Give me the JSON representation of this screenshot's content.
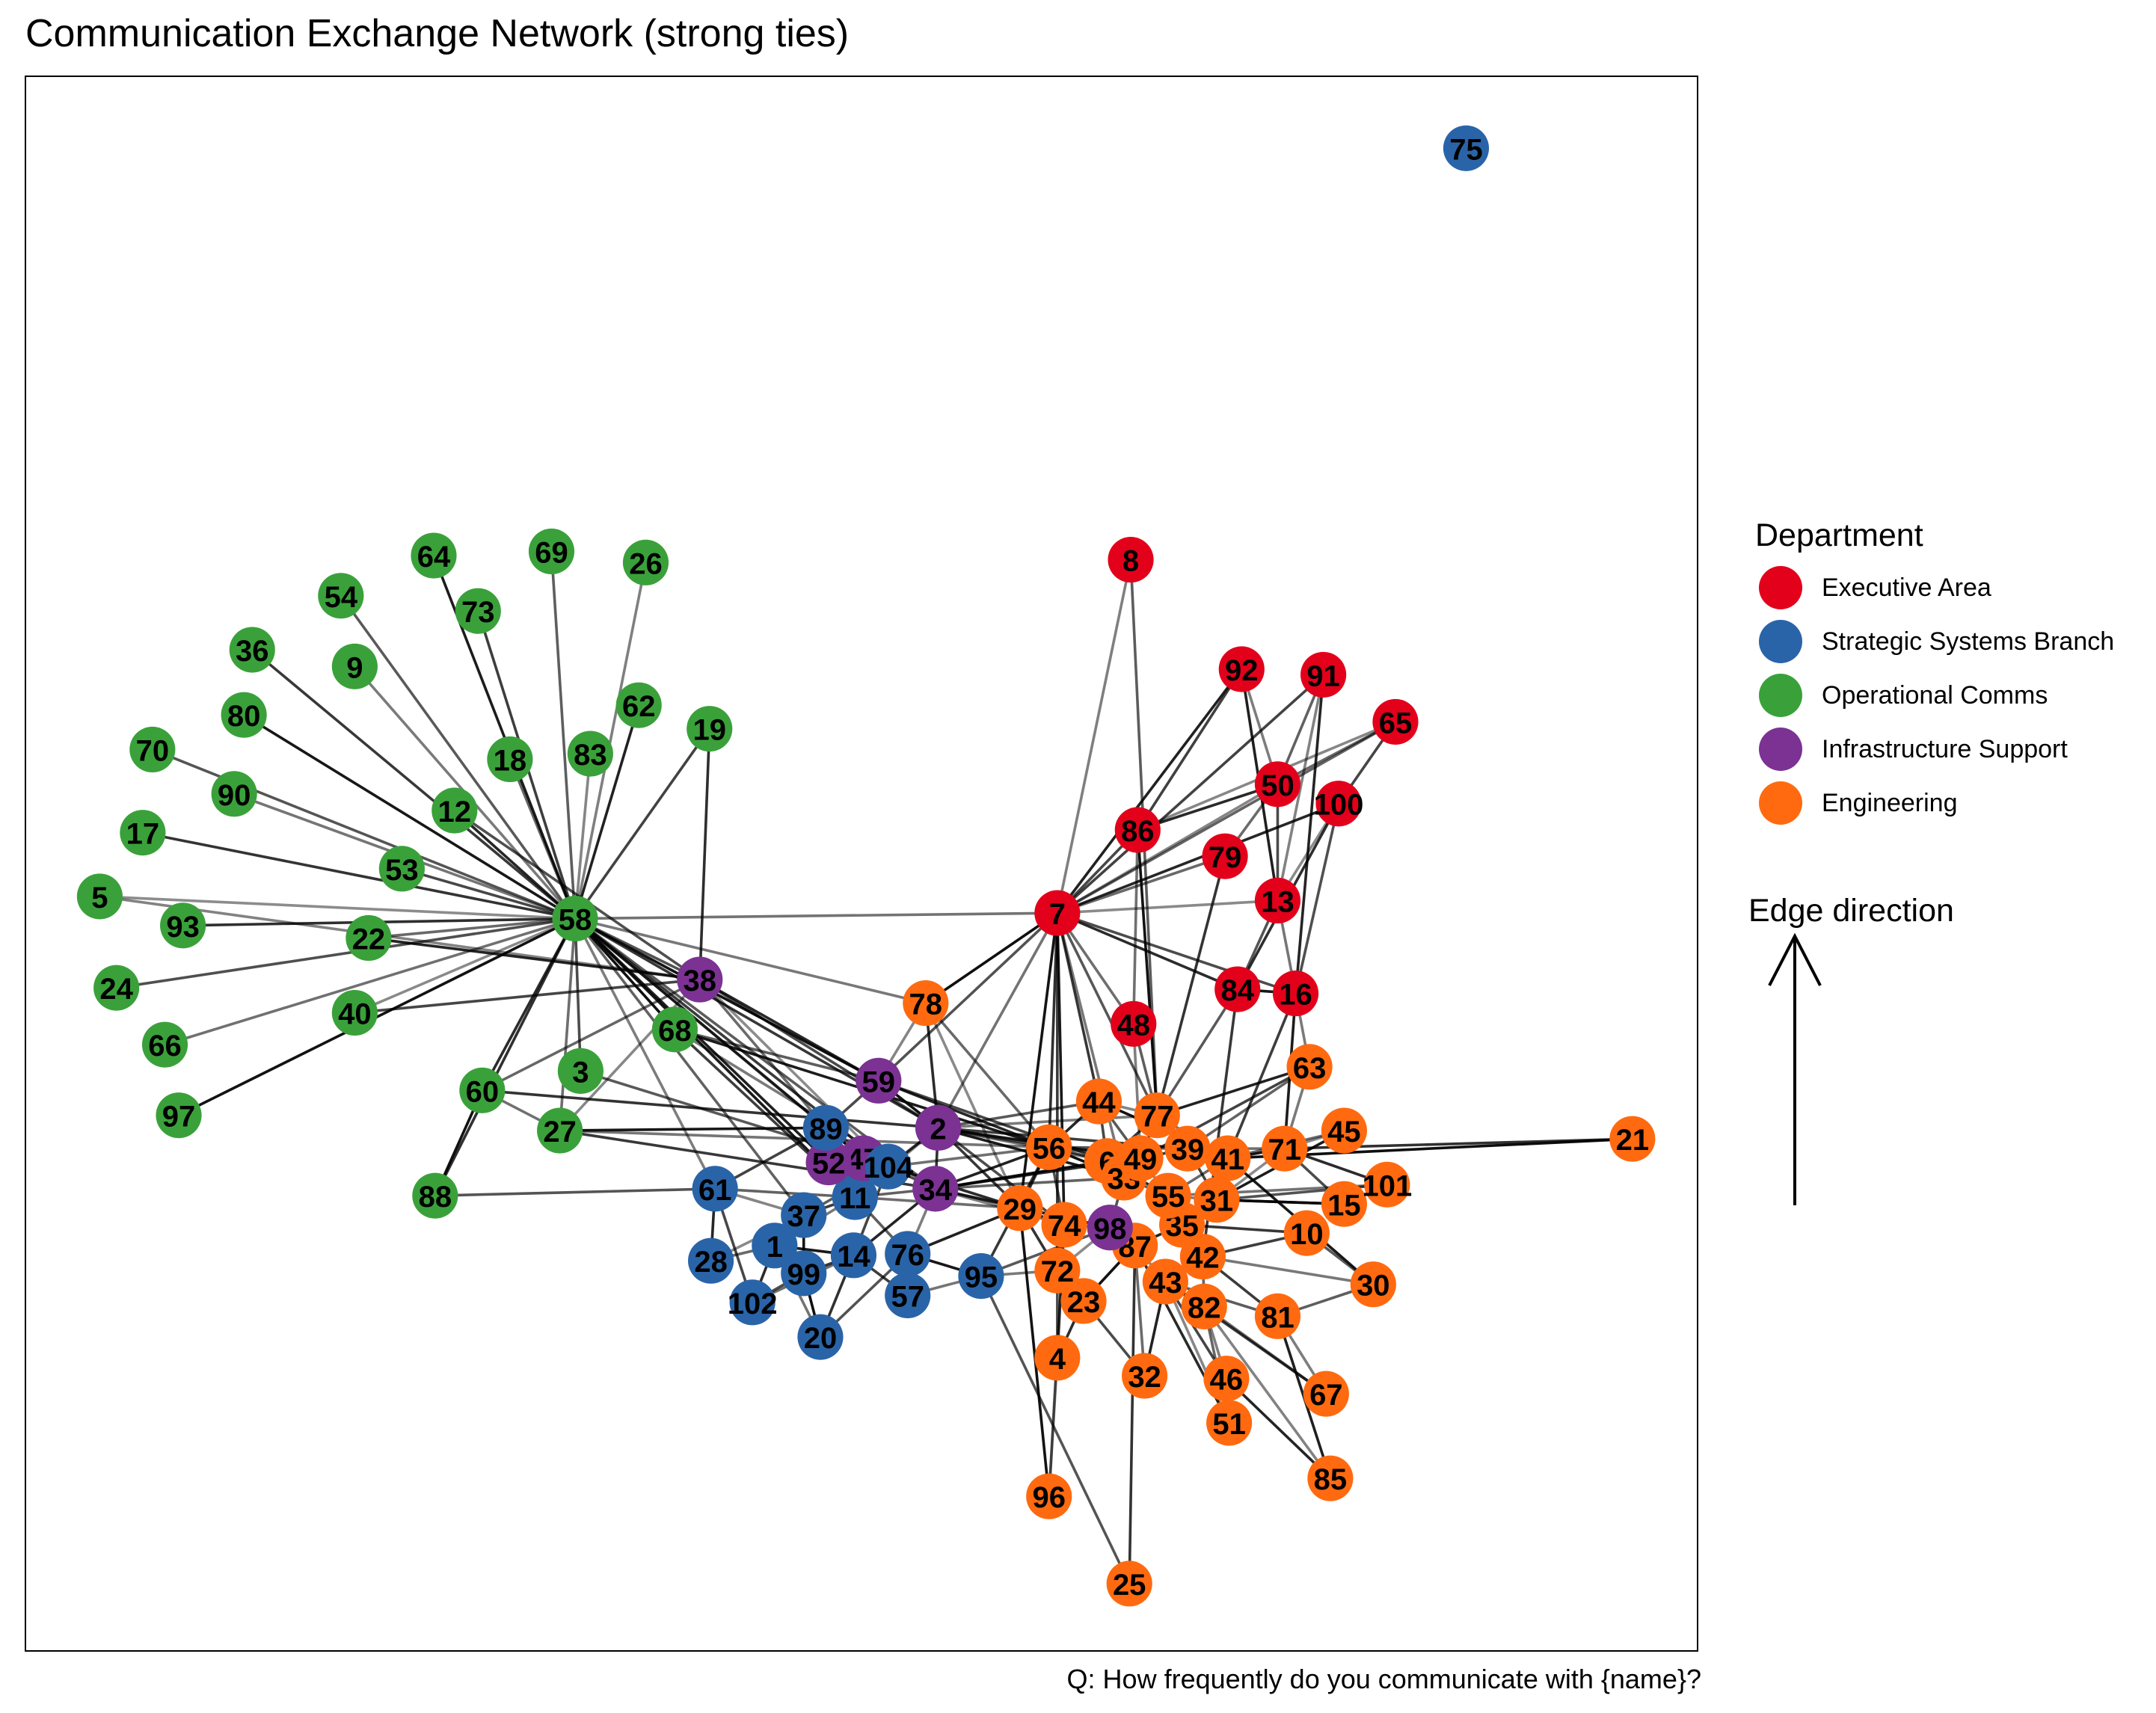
{
  "title": "Communication Exchange Network (strong ties)",
  "caption": "Q: How frequently do you communicate with {name}?",
  "legend": {
    "title": "Department",
    "entries": [
      {
        "label": "Executive Area",
        "color": "#E3001B"
      },
      {
        "label": "Strategic Systems Branch",
        "color": "#2A64A8"
      },
      {
        "label": "Operational Comms",
        "color": "#3AA13A"
      },
      {
        "label": "Infrastructure Support",
        "color": "#7B3293"
      },
      {
        "label": "Engineering",
        "color": "#FF6A10"
      }
    ]
  },
  "edge_direction": {
    "title": "Edge direction"
  },
  "nodes": [
    {
      "id": "1",
      "dept": 1
    },
    {
      "id": "2",
      "dept": 3
    },
    {
      "id": "3",
      "dept": 2
    },
    {
      "id": "4",
      "dept": 4
    },
    {
      "id": "5",
      "dept": 2
    },
    {
      "id": "6",
      "dept": 4
    },
    {
      "id": "7",
      "dept": 0
    },
    {
      "id": "8",
      "dept": 0
    },
    {
      "id": "9",
      "dept": 2
    },
    {
      "id": "10",
      "dept": 4
    },
    {
      "id": "11",
      "dept": 1
    },
    {
      "id": "12",
      "dept": 2
    },
    {
      "id": "13",
      "dept": 0
    },
    {
      "id": "14",
      "dept": 1
    },
    {
      "id": "15",
      "dept": 4
    },
    {
      "id": "16",
      "dept": 0
    },
    {
      "id": "17",
      "dept": 2
    },
    {
      "id": "18",
      "dept": 2
    },
    {
      "id": "19",
      "dept": 2
    },
    {
      "id": "20",
      "dept": 1
    },
    {
      "id": "21",
      "dept": 4
    },
    {
      "id": "22",
      "dept": 2
    },
    {
      "id": "23",
      "dept": 4
    },
    {
      "id": "24",
      "dept": 2
    },
    {
      "id": "25",
      "dept": 4
    },
    {
      "id": "26",
      "dept": 2
    },
    {
      "id": "27",
      "dept": 2
    },
    {
      "id": "28",
      "dept": 1
    },
    {
      "id": "29",
      "dept": 4
    },
    {
      "id": "30",
      "dept": 4
    },
    {
      "id": "31",
      "dept": 4
    },
    {
      "id": "32",
      "dept": 4
    },
    {
      "id": "33",
      "dept": 4
    },
    {
      "id": "34",
      "dept": 3
    },
    {
      "id": "35",
      "dept": 4
    },
    {
      "id": "36",
      "dept": 2
    },
    {
      "id": "37",
      "dept": 1
    },
    {
      "id": "38",
      "dept": 3
    },
    {
      "id": "39",
      "dept": 4
    },
    {
      "id": "40",
      "dept": 2
    },
    {
      "id": "41",
      "dept": 4
    },
    {
      "id": "42",
      "dept": 4
    },
    {
      "id": "43",
      "dept": 4
    },
    {
      "id": "44",
      "dept": 4
    },
    {
      "id": "45",
      "dept": 4
    },
    {
      "id": "46",
      "dept": 4
    },
    {
      "id": "47",
      "dept": 3
    },
    {
      "id": "48",
      "dept": 0
    },
    {
      "id": "49",
      "dept": 4
    },
    {
      "id": "50",
      "dept": 0
    },
    {
      "id": "51",
      "dept": 4
    },
    {
      "id": "52",
      "dept": 3
    },
    {
      "id": "53",
      "dept": 2
    },
    {
      "id": "54",
      "dept": 2
    },
    {
      "id": "55",
      "dept": 4
    },
    {
      "id": "56",
      "dept": 4
    },
    {
      "id": "57",
      "dept": 1
    },
    {
      "id": "58",
      "dept": 2
    },
    {
      "id": "59",
      "dept": 3
    },
    {
      "id": "60",
      "dept": 2
    },
    {
      "id": "61",
      "dept": 1
    },
    {
      "id": "62",
      "dept": 2
    },
    {
      "id": "63",
      "dept": 4
    },
    {
      "id": "64",
      "dept": 2
    },
    {
      "id": "65",
      "dept": 0
    },
    {
      "id": "66",
      "dept": 2
    },
    {
      "id": "67",
      "dept": 4
    },
    {
      "id": "68",
      "dept": 2
    },
    {
      "id": "69",
      "dept": 2
    },
    {
      "id": "70",
      "dept": 2
    },
    {
      "id": "71",
      "dept": 4
    },
    {
      "id": "72",
      "dept": 4
    },
    {
      "id": "73",
      "dept": 2
    },
    {
      "id": "74",
      "dept": 4
    },
    {
      "id": "75",
      "dept": 1
    },
    {
      "id": "76",
      "dept": 1
    },
    {
      "id": "77",
      "dept": 4
    },
    {
      "id": "78",
      "dept": 4
    },
    {
      "id": "79",
      "dept": 0
    },
    {
      "id": "80",
      "dept": 2
    },
    {
      "id": "81",
      "dept": 4
    },
    {
      "id": "82",
      "dept": 4
    },
    {
      "id": "83",
      "dept": 2
    },
    {
      "id": "84",
      "dept": 0
    },
    {
      "id": "85",
      "dept": 4
    },
    {
      "id": "86",
      "dept": 0
    },
    {
      "id": "87",
      "dept": 4
    },
    {
      "id": "88",
      "dept": 2
    },
    {
      "id": "89",
      "dept": 1
    },
    {
      "id": "90",
      "dept": 2
    },
    {
      "id": "91",
      "dept": 0
    },
    {
      "id": "92",
      "dept": 0
    },
    {
      "id": "93",
      "dept": 2
    },
    {
      "id": "95",
      "dept": 1
    },
    {
      "id": "96",
      "dept": 4
    },
    {
      "id": "97",
      "dept": 2
    },
    {
      "id": "98",
      "dept": 3
    },
    {
      "id": "99",
      "dept": 1
    },
    {
      "id": "100",
      "dept": 0
    },
    {
      "id": "101",
      "dept": 4
    },
    {
      "id": "102",
      "dept": 1
    },
    {
      "id": "104",
      "dept": 1
    }
  ],
  "edges": [
    [
      "58",
      "5"
    ],
    [
      "58",
      "93"
    ],
    [
      "58",
      "24"
    ],
    [
      "58",
      "66"
    ],
    [
      "58",
      "97"
    ],
    [
      "58",
      "17"
    ],
    [
      "58",
      "70"
    ],
    [
      "58",
      "90"
    ],
    [
      "58",
      "80"
    ],
    [
      "58",
      "36"
    ],
    [
      "58",
      "54"
    ],
    [
      "58",
      "9"
    ],
    [
      "58",
      "64"
    ],
    [
      "58",
      "73"
    ],
    [
      "58",
      "69"
    ],
    [
      "58",
      "26"
    ],
    [
      "58",
      "62"
    ],
    [
      "58",
      "19"
    ],
    [
      "58",
      "18"
    ],
    [
      "58",
      "83"
    ],
    [
      "58",
      "12"
    ],
    [
      "58",
      "53"
    ],
    [
      "58",
      "22"
    ],
    [
      "58",
      "40"
    ],
    [
      "58",
      "60"
    ],
    [
      "58",
      "3"
    ],
    [
      "58",
      "27"
    ],
    [
      "58",
      "68"
    ],
    [
      "58",
      "88"
    ],
    [
      "58",
      "38"
    ],
    [
      "58",
      "7"
    ],
    [
      "58",
      "59"
    ],
    [
      "58",
      "2"
    ],
    [
      "58",
      "89"
    ],
    [
      "58",
      "78"
    ],
    [
      "58",
      "11"
    ],
    [
      "58",
      "104"
    ],
    [
      "58",
      "34"
    ],
    [
      "58",
      "61"
    ],
    [
      "58",
      "52"
    ],
    [
      "58",
      "47"
    ],
    [
      "58",
      "37"
    ],
    [
      "38",
      "5"
    ],
    [
      "38",
      "22"
    ],
    [
      "38",
      "40"
    ],
    [
      "38",
      "60"
    ],
    [
      "38",
      "27"
    ],
    [
      "38",
      "59"
    ],
    [
      "38",
      "2"
    ],
    [
      "38",
      "89"
    ],
    [
      "38",
      "104"
    ],
    [
      "38",
      "19"
    ],
    [
      "38",
      "12"
    ],
    [
      "60",
      "27"
    ],
    [
      "60",
      "88"
    ],
    [
      "60",
      "2"
    ],
    [
      "88",
      "61"
    ],
    [
      "27",
      "56"
    ],
    [
      "27",
      "89"
    ],
    [
      "27",
      "34"
    ],
    [
      "3",
      "104"
    ],
    [
      "68",
      "34"
    ],
    [
      "68",
      "56"
    ],
    [
      "68",
      "11"
    ],
    [
      "68",
      "59"
    ],
    [
      "7",
      "8"
    ],
    [
      "7",
      "92"
    ],
    [
      "7",
      "91"
    ],
    [
      "7",
      "65"
    ],
    [
      "7",
      "50"
    ],
    [
      "7",
      "100"
    ],
    [
      "7",
      "86"
    ],
    [
      "7",
      "79"
    ],
    [
      "7",
      "13"
    ],
    [
      "7",
      "84"
    ],
    [
      "7",
      "16"
    ],
    [
      "7",
      "48"
    ],
    [
      "7",
      "78"
    ],
    [
      "7",
      "56"
    ],
    [
      "7",
      "59"
    ],
    [
      "7",
      "2"
    ],
    [
      "7",
      "29"
    ],
    [
      "7",
      "44"
    ],
    [
      "7",
      "77"
    ],
    [
      "7",
      "33"
    ],
    [
      "7",
      "74"
    ],
    [
      "7",
      "72"
    ],
    [
      "8",
      "77"
    ],
    [
      "92",
      "50"
    ],
    [
      "92",
      "13"
    ],
    [
      "92",
      "86"
    ],
    [
      "91",
      "50"
    ],
    [
      "91",
      "13"
    ],
    [
      "91",
      "16"
    ],
    [
      "65",
      "100"
    ],
    [
      "65",
      "50"
    ],
    [
      "65",
      "86"
    ],
    [
      "50",
      "86"
    ],
    [
      "50",
      "13"
    ],
    [
      "50",
      "79"
    ],
    [
      "100",
      "13"
    ],
    [
      "100",
      "84"
    ],
    [
      "100",
      "16"
    ],
    [
      "86",
      "48"
    ],
    [
      "86",
      "77"
    ],
    [
      "79",
      "77"
    ],
    [
      "13",
      "84"
    ],
    [
      "13",
      "16"
    ],
    [
      "84",
      "16"
    ],
    [
      "84",
      "42"
    ],
    [
      "84",
      "77"
    ],
    [
      "16",
      "63"
    ],
    [
      "16",
      "71"
    ],
    [
      "16",
      "41"
    ],
    [
      "48",
      "77"
    ],
    [
      "48",
      "49"
    ],
    [
      "63",
      "77"
    ],
    [
      "63",
      "49"
    ],
    [
      "63",
      "39"
    ],
    [
      "44",
      "77"
    ],
    [
      "44",
      "56"
    ],
    [
      "44",
      "6"
    ],
    [
      "45",
      "41"
    ],
    [
      "45",
      "71"
    ],
    [
      "71",
      "101"
    ],
    [
      "71",
      "15"
    ],
    [
      "71",
      "39"
    ],
    [
      "21",
      "41"
    ],
    [
      "21",
      "71"
    ],
    [
      "101",
      "31"
    ],
    [
      "101",
      "55"
    ],
    [
      "15",
      "31"
    ],
    [
      "10",
      "35"
    ],
    [
      "10",
      "30"
    ],
    [
      "30",
      "42"
    ],
    [
      "30",
      "41"
    ],
    [
      "81",
      "42"
    ],
    [
      "81",
      "43"
    ],
    [
      "81",
      "67"
    ],
    [
      "81",
      "85"
    ],
    [
      "67",
      "43"
    ],
    [
      "67",
      "82"
    ],
    [
      "85",
      "82"
    ],
    [
      "85",
      "46"
    ],
    [
      "46",
      "43"
    ],
    [
      "51",
      "82"
    ],
    [
      "51",
      "43"
    ],
    [
      "51",
      "87"
    ],
    [
      "32",
      "23"
    ],
    [
      "32",
      "87"
    ],
    [
      "4",
      "96"
    ],
    [
      "4",
      "23"
    ],
    [
      "4",
      "72"
    ],
    [
      "96",
      "74"
    ],
    [
      "96",
      "29"
    ],
    [
      "25",
      "87"
    ],
    [
      "25",
      "95"
    ],
    [
      "95",
      "57"
    ],
    [
      "95",
      "76"
    ],
    [
      "95",
      "56"
    ],
    [
      "95",
      "98"
    ],
    [
      "95",
      "72"
    ],
    [
      "57",
      "76"
    ],
    [
      "57",
      "14"
    ],
    [
      "76",
      "11"
    ],
    [
      "76",
      "34"
    ],
    [
      "76",
      "29"
    ],
    [
      "61",
      "89"
    ],
    [
      "61",
      "11"
    ],
    [
      "61",
      "37"
    ],
    [
      "61",
      "28"
    ],
    [
      "61",
      "102"
    ],
    [
      "28",
      "1"
    ],
    [
      "28",
      "37"
    ],
    [
      "102",
      "1"
    ],
    [
      "102",
      "99"
    ],
    [
      "102",
      "14"
    ],
    [
      "20",
      "99"
    ],
    [
      "20",
      "14"
    ],
    [
      "20",
      "76"
    ],
    [
      "20",
      "1"
    ],
    [
      "99",
      "37"
    ],
    [
      "99",
      "14"
    ],
    [
      "1",
      "37"
    ],
    [
      "1",
      "11"
    ],
    [
      "1",
      "14"
    ],
    [
      "37",
      "11"
    ],
    [
      "37",
      "104"
    ],
    [
      "11",
      "104"
    ],
    [
      "11",
      "52"
    ],
    [
      "11",
      "47"
    ],
    [
      "11",
      "34"
    ],
    [
      "11",
      "2"
    ],
    [
      "14",
      "34"
    ],
    [
      "14",
      "104"
    ],
    [
      "89",
      "104"
    ],
    [
      "89",
      "52"
    ],
    [
      "89",
      "47"
    ],
    [
      "89",
      "59"
    ],
    [
      "52",
      "47"
    ],
    [
      "47",
      "104"
    ],
    [
      "104",
      "2"
    ],
    [
      "104",
      "34"
    ],
    [
      "104",
      "56"
    ],
    [
      "2",
      "59"
    ],
    [
      "2",
      "34"
    ],
    [
      "2",
      "56"
    ],
    [
      "2",
      "6"
    ],
    [
      "2",
      "49"
    ],
    [
      "2",
      "29"
    ],
    [
      "2",
      "44"
    ],
    [
      "2",
      "77"
    ],
    [
      "2",
      "33"
    ],
    [
      "2",
      "39"
    ],
    [
      "34",
      "29"
    ],
    [
      "34",
      "74"
    ],
    [
      "34",
      "56"
    ],
    [
      "34",
      "98"
    ],
    [
      "34",
      "33"
    ],
    [
      "59",
      "78"
    ],
    [
      "59",
      "56"
    ],
    [
      "59",
      "6"
    ],
    [
      "78",
      "56"
    ],
    [
      "78",
      "29"
    ],
    [
      "78",
      "2"
    ],
    [
      "56",
      "6"
    ],
    [
      "56",
      "49"
    ],
    [
      "56",
      "33"
    ],
    [
      "56",
      "29"
    ],
    [
      "56",
      "74"
    ],
    [
      "6",
      "49"
    ],
    [
      "6",
      "33"
    ],
    [
      "49",
      "39"
    ],
    [
      "49",
      "33"
    ],
    [
      "39",
      "41"
    ],
    [
      "41",
      "71"
    ],
    [
      "41",
      "31"
    ],
    [
      "33",
      "55"
    ],
    [
      "55",
      "31"
    ],
    [
      "55",
      "35"
    ],
    [
      "31",
      "15"
    ],
    [
      "31",
      "35"
    ],
    [
      "35",
      "42"
    ],
    [
      "35",
      "87"
    ],
    [
      "42",
      "43"
    ],
    [
      "42",
      "82"
    ],
    [
      "43",
      "87"
    ],
    [
      "43",
      "82"
    ],
    [
      "87",
      "98"
    ],
    [
      "98",
      "74"
    ],
    [
      "98",
      "72"
    ],
    [
      "74",
      "29"
    ],
    [
      "74",
      "72"
    ],
    [
      "72",
      "23"
    ],
    [
      "23",
      "87"
    ],
    [
      "29",
      "72"
    ],
    [
      "33",
      "98"
    ],
    [
      "77",
      "39"
    ],
    [
      "77",
      "49"
    ],
    [
      "77",
      "6"
    ],
    [
      "44",
      "49"
    ],
    [
      "63",
      "71"
    ],
    [
      "45",
      "31"
    ],
    [
      "10",
      "42"
    ],
    [
      "81",
      "30"
    ],
    [
      "46",
      "82"
    ],
    [
      "32",
      "43"
    ],
    [
      "4",
      "74"
    ],
    [
      "29",
      "98"
    ],
    [
      "49",
      "55"
    ],
    [
      "6",
      "55"
    ],
    [
      "39",
      "31"
    ],
    [
      "41",
      "55"
    ],
    [
      "71",
      "31"
    ],
    [
      "104",
      "29"
    ],
    [
      "2",
      "74"
    ],
    [
      "11",
      "29"
    ],
    [
      "34",
      "6"
    ],
    [
      "34",
      "49"
    ],
    [
      "56",
      "39"
    ],
    [
      "77",
      "41"
    ],
    [
      "44",
      "41"
    ]
  ]
}
